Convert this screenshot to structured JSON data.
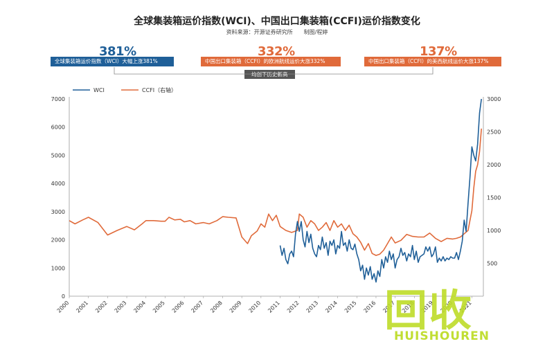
{
  "header": {
    "title": "全球集装箱运价指数(WCI)、中国出口集装箱(CCFI)运价指数变化",
    "source": "资料来源：开源证券研究所　　制图/程婷"
  },
  "callouts": [
    {
      "pct": "381%",
      "text": "全球集装箱运价指数（WCI）大幅上涨381%",
      "color": "#1f5f98"
    },
    {
      "pct": "332%",
      "text": "中国出口集装箱（CCFI）的欧洲航线运价大涨332%",
      "color": "#e06a3a"
    },
    {
      "pct": "137%",
      "text": "中国出口集装箱（CCFI）的美西航线运价大涨137%",
      "color": "#e06a3a"
    }
  ],
  "mid_label": "均创下历史新高",
  "watermark": {
    "cn": "回收",
    "en": "HUISHOUREN"
  },
  "colors": {
    "wci": "#1f5f98",
    "ccfi": "#e06a3a"
  },
  "chart_data": {
    "type": "line",
    "title": "",
    "xlabel": "",
    "ylabel": "",
    "x_ticks": [
      "2000",
      "2001",
      "2002",
      "2003",
      "2004",
      "2005",
      "2006",
      "2007",
      "2008",
      "2009",
      "2010",
      "2011",
      "2012",
      "2013",
      "2014",
      "2015",
      "2016",
      "2017",
      "2018",
      "2019",
      "2020",
      "2021"
    ],
    "xlim": [
      2000,
      2021.6
    ],
    "ylim_left": [
      0,
      7000
    ],
    "y_ticks_left": [
      0,
      1000,
      2000,
      3000,
      4000,
      5000,
      6000,
      7000
    ],
    "ylim_right": [
      0,
      3000
    ],
    "y_ticks_right": [
      500,
      1000,
      1500,
      2000,
      2500,
      3000
    ],
    "legend_position": "top-left",
    "series": [
      {
        "name": "WCI",
        "axis": "left",
        "x": [
          2011.0,
          2011.1,
          2011.2,
          2011.3,
          2011.4,
          2011.5,
          2011.6,
          2011.7,
          2011.8,
          2011.9,
          2012.0,
          2012.1,
          2012.2,
          2012.3,
          2012.4,
          2012.5,
          2012.6,
          2012.7,
          2012.8,
          2012.9,
          2013.0,
          2013.1,
          2013.2,
          2013.3,
          2013.4,
          2013.5,
          2013.6,
          2013.7,
          2013.8,
          2013.9,
          2014.0,
          2014.1,
          2014.2,
          2014.3,
          2014.4,
          2014.5,
          2014.6,
          2014.7,
          2014.8,
          2014.9,
          2015.0,
          2015.1,
          2015.2,
          2015.3,
          2015.4,
          2015.5,
          2015.6,
          2015.7,
          2015.8,
          2015.9,
          2016.0,
          2016.1,
          2016.2,
          2016.3,
          2016.4,
          2016.5,
          2016.6,
          2016.7,
          2016.8,
          2016.9,
          2017.0,
          2017.1,
          2017.2,
          2017.3,
          2017.4,
          2017.5,
          2017.6,
          2017.7,
          2017.8,
          2017.9,
          2018.0,
          2018.1,
          2018.2,
          2018.3,
          2018.4,
          2018.5,
          2018.6,
          2018.7,
          2018.8,
          2018.9,
          2019.0,
          2019.1,
          2019.2,
          2019.3,
          2019.4,
          2019.5,
          2019.6,
          2019.7,
          2019.8,
          2019.9,
          2020.0,
          2020.1,
          2020.2,
          2020.3,
          2020.4,
          2020.5,
          2020.6,
          2020.7,
          2020.8,
          2020.9,
          2021.0,
          2021.1,
          2021.2,
          2021.3,
          2021.4,
          2021.5
        ],
        "y": [
          1800,
          1450,
          1700,
          1300,
          1150,
          1500,
          1600,
          1400,
          2200,
          2650,
          2300,
          2650,
          2000,
          1750,
          2300,
          1900,
          2200,
          1700,
          1500,
          1400,
          1800,
          1650,
          2100,
          1700,
          1900,
          1450,
          1950,
          1800,
          2000,
          1500,
          1800,
          1700,
          2300,
          1800,
          1900,
          1600,
          2000,
          1700,
          1650,
          1850,
          1500,
          1300,
          900,
          1100,
          600,
          1000,
          750,
          1050,
          600,
          800,
          500,
          900,
          700,
          1300,
          1000,
          1400,
          1200,
          1600,
          1300,
          1500,
          1000,
          1300,
          1400,
          1700,
          1450,
          1550,
          1250,
          1500,
          1400,
          1800,
          1300,
          1600,
          1200,
          1400,
          1450,
          1500,
          1750,
          1600,
          1750,
          1400,
          1500,
          1750,
          1200,
          1350,
          1250,
          1400,
          1250,
          1350,
          1300,
          1400,
          1350,
          1350,
          1550,
          1300,
          1600,
          1950,
          2700,
          2300,
          3300,
          4200,
          5300,
          5000,
          4800,
          5400,
          6500,
          7000
        ]
      },
      {
        "name": "CCFI（右轴）",
        "axis": "right",
        "x": [
          2000.0,
          2000.3,
          2000.7,
          2001.0,
          2001.5,
          2002.0,
          2002.5,
          2003.0,
          2003.4,
          2003.8,
          2004.0,
          2004.4,
          2004.8,
          2005.0,
          2005.2,
          2005.5,
          2005.8,
          2006.0,
          2006.3,
          2006.6,
          2007.0,
          2007.3,
          2007.7,
          2008.0,
          2008.3,
          2008.7,
          2009.0,
          2009.3,
          2009.5,
          2009.8,
          2010.0,
          2010.2,
          2010.4,
          2010.6,
          2010.8,
          2011.0,
          2011.3,
          2011.6,
          2011.9,
          2012.0,
          2012.2,
          2012.4,
          2012.6,
          2012.8,
          2013.0,
          2013.2,
          2013.4,
          2013.6,
          2013.8,
          2014.0,
          2014.2,
          2014.4,
          2014.6,
          2014.8,
          2015.0,
          2015.2,
          2015.4,
          2015.6,
          2015.8,
          2016.0,
          2016.2,
          2016.4,
          2016.6,
          2016.8,
          2017.0,
          2017.3,
          2017.6,
          2017.9,
          2018.2,
          2018.5,
          2018.8,
          2019.1,
          2019.4,
          2019.7,
          2020.0,
          2020.2,
          2020.4,
          2020.6,
          2020.8,
          2020.9,
          2021.0,
          2021.1,
          2021.2,
          2021.3,
          2021.4,
          2021.5
        ],
        "y": [
          1150,
          1100,
          1160,
          1200,
          1120,
          930,
          1000,
          1060,
          1010,
          1100,
          1150,
          1150,
          1140,
          1140,
          1200,
          1160,
          1170,
          1130,
          1150,
          1100,
          1120,
          1100,
          1150,
          1210,
          1200,
          1190,
          900,
          800,
          920,
          990,
          1100,
          1050,
          1250,
          1150,
          1230,
          1060,
          1000,
          970,
          1000,
          1250,
          1200,
          1050,
          1150,
          1100,
          1000,
          1050,
          1120,
          1000,
          1150,
          1050,
          1100,
          1000,
          1080,
          950,
          900,
          820,
          700,
          800,
          650,
          620,
          640,
          700,
          800,
          900,
          810,
          850,
          940,
          910,
          900,
          900,
          960,
          880,
          830,
          880,
          870,
          880,
          900,
          950,
          1000,
          1150,
          1300,
          1650,
          1900,
          2000,
          2200,
          2550
        ]
      }
    ]
  }
}
